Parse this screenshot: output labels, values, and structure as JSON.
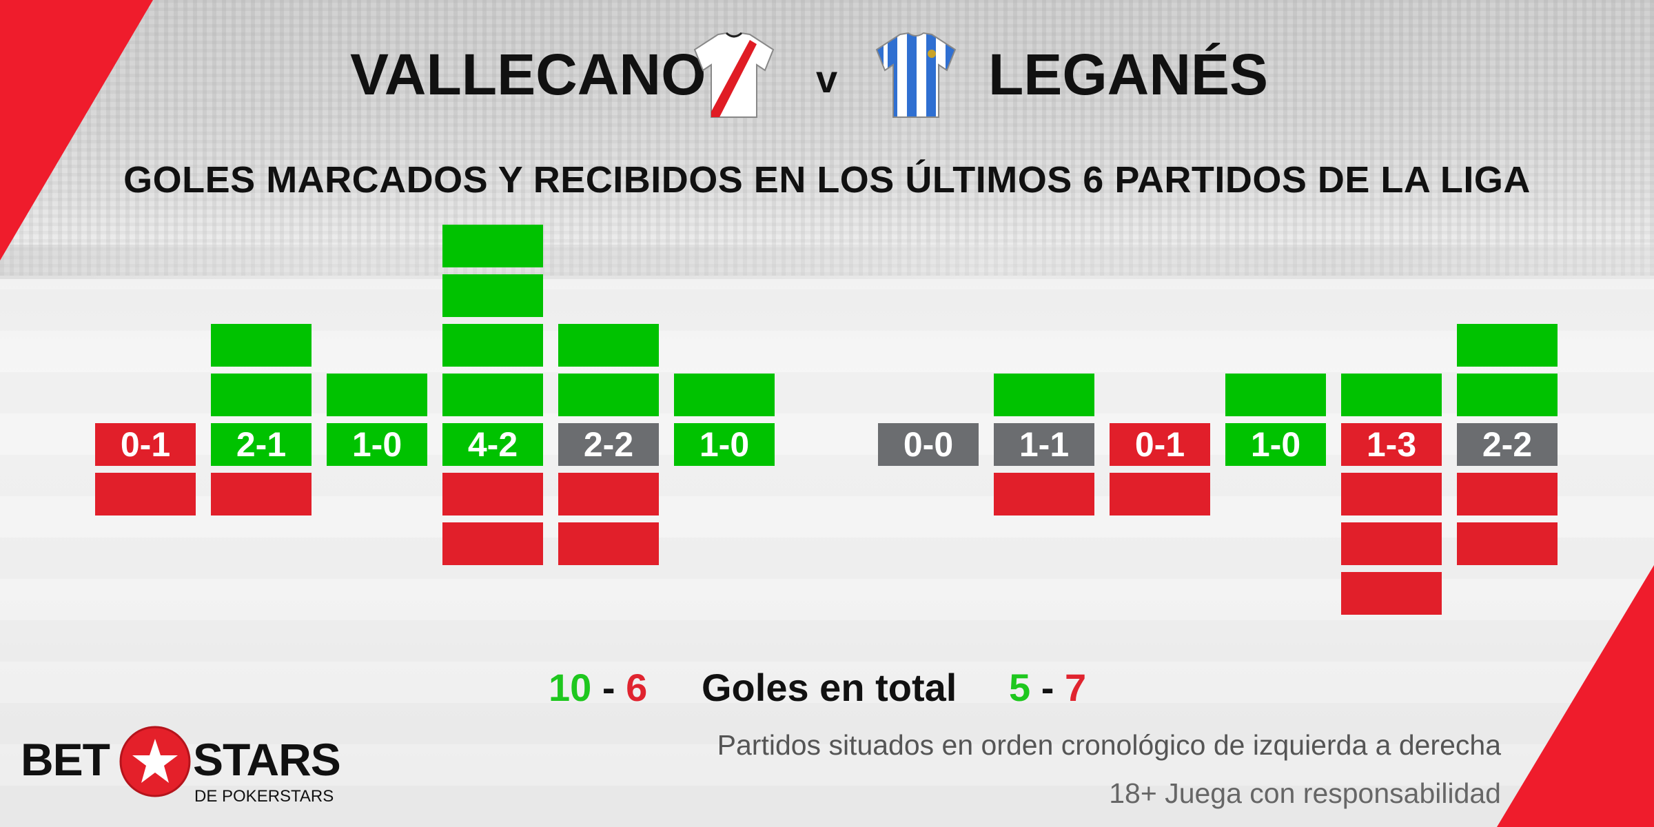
{
  "header": {
    "home_team": "VALLECANO",
    "separator": "v",
    "away_team": "LEGANÉS",
    "home_kit_icon": "jersey-white-red-sash-icon",
    "away_kit_icon": "jersey-blue-white-stripes-icon"
  },
  "subtitle": "GOLES MARCADOS Y RECIBIDOS EN LOS ÚLTIMOS 6 PARTIDOS DE LA LIGA",
  "totals": {
    "home_scored": "10",
    "home_conceded": "6",
    "label": "Goles en total",
    "away_scored": "5",
    "away_conceded": "7",
    "dash": "-"
  },
  "footer": {
    "note": "Partidos situados en orden cronológico de izquierda a derecha",
    "disclaimer": "18+ Juega con responsabilidad"
  },
  "logo": {
    "left": "BET",
    "right": "STARS",
    "sub": "DE POKERSTARS"
  },
  "colors": {
    "scored": "#00c200",
    "conceded": "#e11f2a",
    "win": "#00c200",
    "draw": "#6b6d70",
    "loss": "#e11f2a",
    "accent": "#ef1c2c"
  },
  "chart_data": {
    "type": "bar",
    "title": "GOLES MARCADOS Y RECIBIDOS EN LOS ÚLTIMOS 6 PARTIDOS DE LA LIGA",
    "series": [
      {
        "team": "VALLECANO",
        "matches": [
          {
            "score": "0-1",
            "scored": 0,
            "conceded": 1,
            "result": "loss"
          },
          {
            "score": "2-1",
            "scored": 2,
            "conceded": 1,
            "result": "win"
          },
          {
            "score": "1-0",
            "scored": 1,
            "conceded": 0,
            "result": "win"
          },
          {
            "score": "4-2",
            "scored": 4,
            "conceded": 2,
            "result": "win"
          },
          {
            "score": "2-2",
            "scored": 2,
            "conceded": 2,
            "result": "draw"
          },
          {
            "score": "1-0",
            "scored": 1,
            "conceded": 0,
            "result": "win"
          }
        ]
      },
      {
        "team": "LEGANÉS",
        "matches": [
          {
            "score": "0-0",
            "scored": 0,
            "conceded": 0,
            "result": "draw"
          },
          {
            "score": "1-1",
            "scored": 1,
            "conceded": 1,
            "result": "draw"
          },
          {
            "score": "0-1",
            "scored": 0,
            "conceded": 1,
            "result": "loss"
          },
          {
            "score": "1-0",
            "scored": 1,
            "conceded": 0,
            "result": "win"
          },
          {
            "score": "1-3",
            "scored": 1,
            "conceded": 3,
            "result": "loss"
          },
          {
            "score": "2-2",
            "scored": 2,
            "conceded": 2,
            "result": "draw"
          }
        ]
      }
    ]
  }
}
